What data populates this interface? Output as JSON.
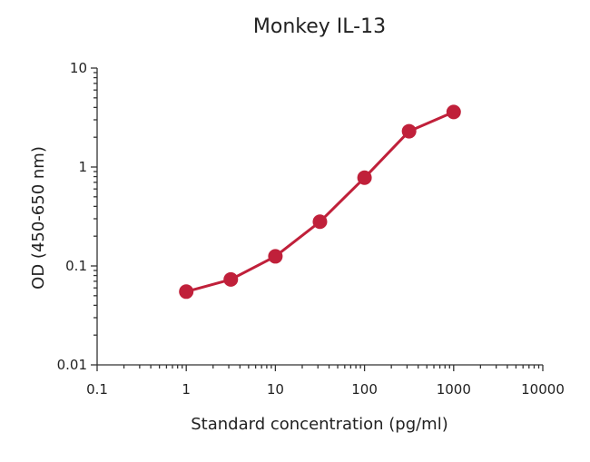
{
  "chart_data": {
    "type": "line",
    "title": "Monkey IL-13",
    "xlabel": "Standard concentration (pg/ml)",
    "ylabel": "OD (450-650 nm)",
    "xscale": "log",
    "yscale": "log",
    "xlim": [
      0.1,
      10000
    ],
    "ylim": [
      0.01,
      10
    ],
    "xticks": [
      "0.1",
      "1",
      "10",
      "100",
      "1000",
      "10000"
    ],
    "yticks": [
      "0.01",
      "0.1",
      "1",
      "10"
    ],
    "grid": false,
    "legend": "none",
    "series": [
      {
        "color": "#c0203a",
        "x": [
          1,
          3.16,
          10,
          31.6,
          100,
          316,
          1000
        ],
        "y": [
          0.055,
          0.073,
          0.125,
          0.28,
          0.78,
          2.3,
          3.6
        ]
      }
    ]
  }
}
